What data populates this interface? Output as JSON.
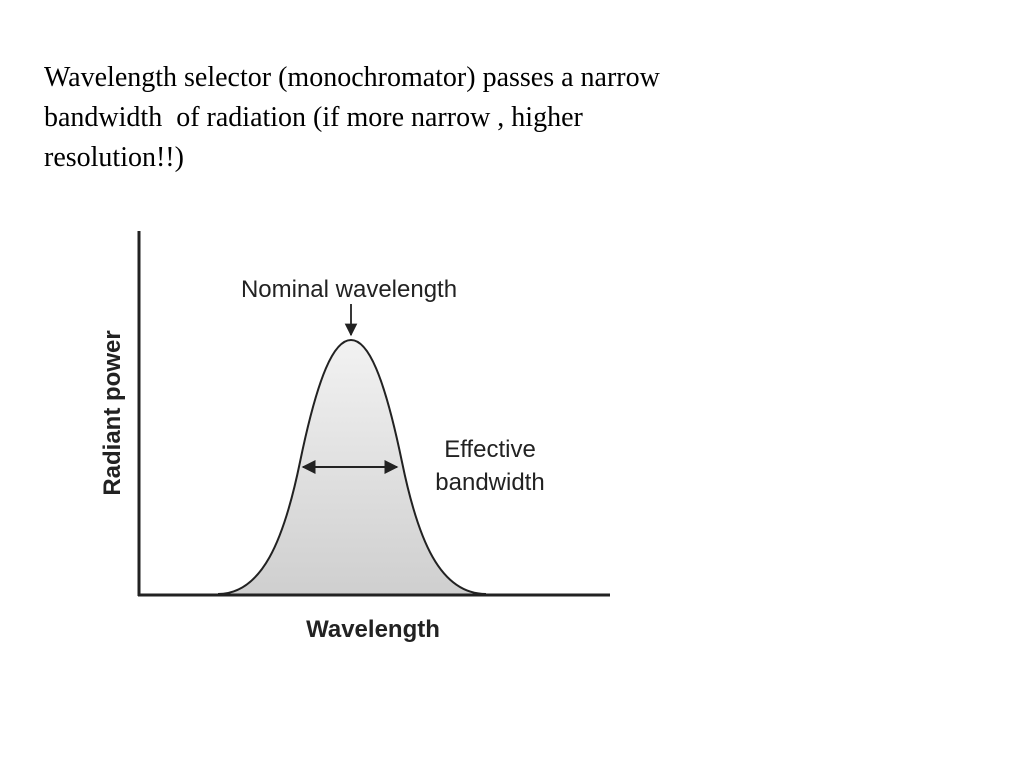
{
  "slide": {
    "caption_lines": [
      "Wavelength selector (monochromator) passes a narrow",
      "bandwidth  of radiation (if more narrow , higher",
      "resolution!!)"
    ]
  },
  "diagram": {
    "y_axis_label": "Radiant power",
    "x_axis_label": "Wavelength",
    "peak_annotation": "Nominal wavelength",
    "bandwidth_annotation_lines": [
      "Effective",
      "bandwidth"
    ],
    "colors": {
      "line": "#222222",
      "fill_top": "#f2f2f2",
      "fill_bottom": "#cfcfcf"
    }
  }
}
